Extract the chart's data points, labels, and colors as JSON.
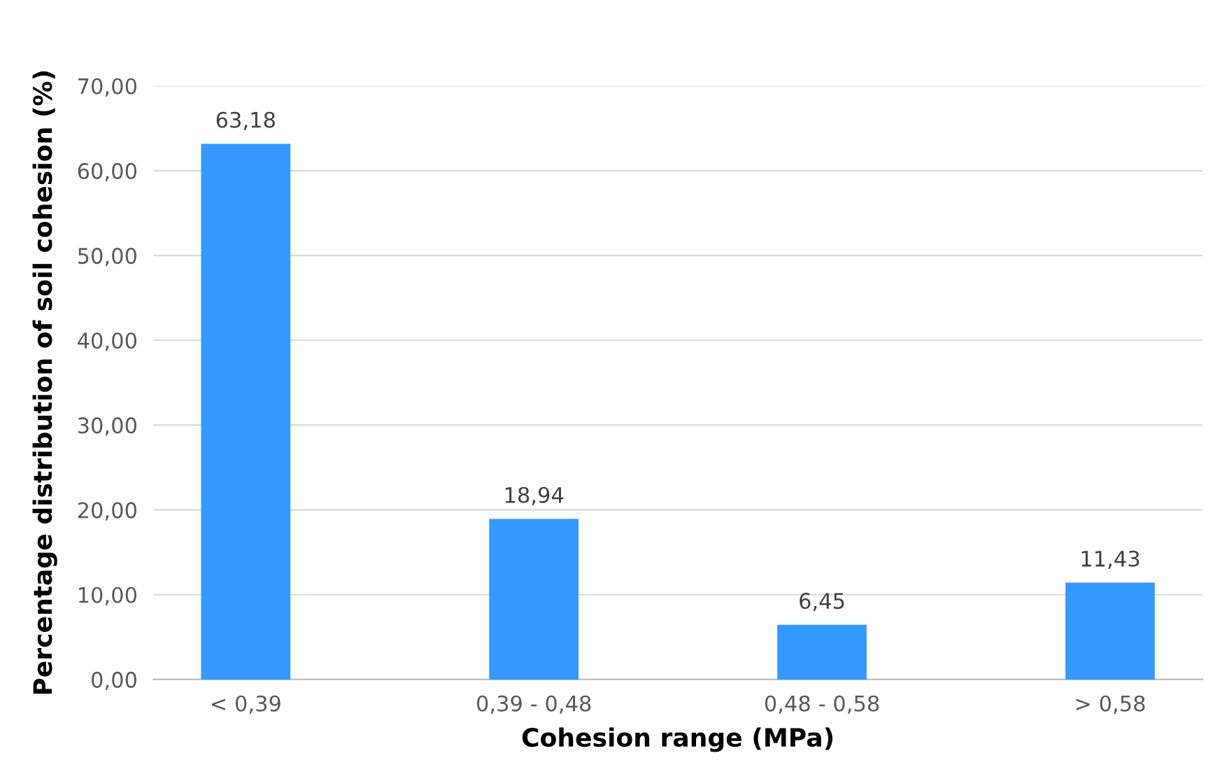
{
  "chart_data": {
    "type": "bar",
    "xlabel": "Cohesion range (MPa)",
    "ylabel": "Percentage distribution of soil cohesion (%)",
    "categories": [
      "< 0,39",
      "0,39 - 0,48",
      "0,48 - 0,58",
      "> 0,58"
    ],
    "values": [
      63.18,
      18.94,
      6.45,
      11.43
    ],
    "value_labels": [
      "63,18",
      "18,94",
      "6,45",
      "11,43"
    ],
    "color": "#3399ff",
    "ylim": [
      0,
      70
    ],
    "yticks": [
      {
        "value": 0,
        "label": "0,00"
      },
      {
        "value": 10,
        "label": "10,00"
      },
      {
        "value": 20,
        "label": "20,00"
      },
      {
        "value": 30,
        "label": "30,00"
      },
      {
        "value": 40,
        "label": "40,00"
      },
      {
        "value": 50,
        "label": "50,00"
      },
      {
        "value": 60,
        "label": "60,00"
      },
      {
        "value": 70,
        "label": "70,00"
      }
    ],
    "grid": "y"
  }
}
